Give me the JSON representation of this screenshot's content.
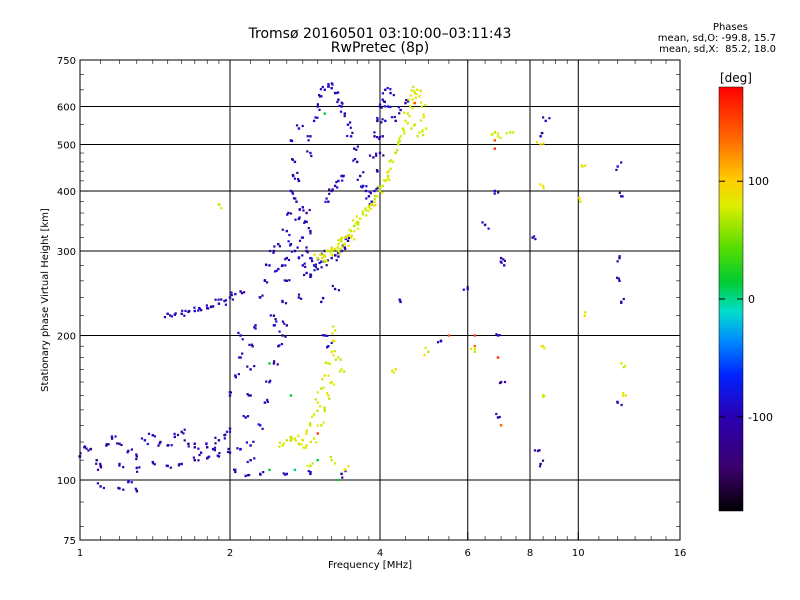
{
  "header": {
    "title": "Tromsø 20160501 03:10:00–03:11:43",
    "subtitle": "RwPretec (8p)",
    "stats_head": "Phases",
    "stats_line1": "mean, sd,O: -99.8, 15.7",
    "stats_line2": "mean, sd,X:  85.2, 18.0"
  },
  "chart_data": {
    "type": "scatter",
    "xlabel": "Frequency [MHz]",
    "ylabel": "Stationary phase Virtual Height [km]",
    "x_scale": "log",
    "y_scale": "log",
    "xlim": [
      1,
      16
    ],
    "ylim": [
      75,
      750
    ],
    "x_ticks": [
      "1",
      "2",
      "4",
      "6",
      "8",
      "10",
      "16"
    ],
    "x_tick_values": [
      1,
      2,
      4,
      6,
      8,
      10,
      16
    ],
    "y_ticks": [
      "75",
      "100",
      "200",
      "300",
      "400",
      "500",
      "600",
      "750"
    ],
    "y_tick_values": [
      75,
      100,
      200,
      300,
      400,
      500,
      600,
      750
    ],
    "grid": true,
    "colorbar": {
      "label": "[deg]",
      "range": [
        -180,
        180
      ],
      "ticks": [
        "100",
        "0",
        "-100"
      ],
      "tick_values": [
        100,
        0,
        -100
      ]
    },
    "series": [
      {
        "mode": "O",
        "phase": -100,
        "points": [
          [
            1.0,
            112
          ],
          [
            1.02,
            117
          ],
          [
            1.05,
            116
          ],
          [
            1.08,
            110
          ],
          [
            1.1,
            107
          ],
          [
            1.13,
            118
          ],
          [
            1.16,
            122
          ],
          [
            1.2,
            119
          ],
          [
            1.25,
            115
          ],
          [
            1.3,
            112
          ],
          [
            1.35,
            121
          ],
          [
            1.4,
            124
          ],
          [
            1.45,
            120
          ],
          [
            1.5,
            118
          ],
          [
            1.55,
            123
          ],
          [
            1.6,
            126
          ],
          [
            1.65,
            119
          ],
          [
            1.7,
            117
          ],
          [
            1.75,
            114
          ],
          [
            1.8,
            117
          ],
          [
            1.85,
            116
          ],
          [
            1.9,
            121
          ],
          [
            1.95,
            124
          ],
          [
            2.0,
            128
          ],
          [
            1.2,
            108
          ],
          [
            1.3,
            106
          ],
          [
            1.4,
            109
          ],
          [
            1.5,
            107
          ],
          [
            1.6,
            108
          ],
          [
            1.7,
            110
          ],
          [
            1.8,
            111
          ],
          [
            1.9,
            112
          ],
          [
            2.0,
            114
          ],
          [
            2.1,
            116
          ],
          [
            2.2,
            118
          ],
          [
            2.05,
            104
          ],
          [
            2.15,
            102
          ],
          [
            2.2,
            110
          ],
          [
            1.5,
            222
          ],
          [
            1.55,
            221
          ],
          [
            1.6,
            222
          ],
          [
            1.65,
            224
          ],
          [
            1.7,
            225
          ],
          [
            1.75,
            226
          ],
          [
            1.8,
            228
          ],
          [
            1.85,
            230
          ],
          [
            1.9,
            233
          ],
          [
            1.95,
            236
          ],
          [
            2.0,
            240
          ],
          [
            2.05,
            244
          ],
          [
            2.1,
            247
          ],
          [
            2.2,
            150
          ],
          [
            2.2,
            170
          ],
          [
            2.22,
            190
          ],
          [
            2.25,
            210
          ],
          [
            2.3,
            240
          ],
          [
            2.35,
            260
          ],
          [
            2.4,
            280
          ],
          [
            2.45,
            300
          ],
          [
            2.5,
            310
          ],
          [
            2.3,
            130
          ],
          [
            2.35,
            145
          ],
          [
            2.4,
            160
          ],
          [
            2.45,
            175
          ],
          [
            2.5,
            190
          ],
          [
            2.55,
            200
          ],
          [
            2.6,
            210
          ],
          [
            2.0,
            150
          ],
          [
            2.05,
            165
          ],
          [
            2.1,
            180
          ],
          [
            2.1,
            200
          ],
          [
            2.15,
            135
          ],
          [
            2.6,
            330
          ],
          [
            2.62,
            360
          ],
          [
            2.65,
            400
          ],
          [
            2.68,
            430
          ],
          [
            2.7,
            460
          ],
          [
            2.72,
            380
          ],
          [
            2.75,
            350
          ],
          [
            2.8,
            320
          ],
          [
            2.85,
            300
          ],
          [
            2.9,
            290
          ],
          [
            2.95,
            280
          ],
          [
            3.0,
            275
          ],
          [
            3.05,
            285
          ],
          [
            3.1,
            300
          ],
          [
            2.8,
            370
          ],
          [
            2.85,
            345
          ],
          [
            2.9,
            330
          ],
          [
            2.75,
            420
          ],
          [
            2.65,
            310
          ],
          [
            2.7,
            300
          ],
          [
            2.75,
            290
          ],
          [
            2.8,
            280
          ],
          [
            2.85,
            270
          ],
          [
            2.9,
            265
          ],
          [
            2.6,
            290
          ],
          [
            2.55,
            280
          ],
          [
            2.5,
            275
          ],
          [
            2.6,
            260
          ],
          [
            3.1,
            285
          ],
          [
            3.2,
            290
          ],
          [
            3.3,
            292
          ],
          [
            3.35,
            300
          ],
          [
            3.4,
            305
          ],
          [
            3.45,
            315
          ],
          [
            2.9,
            520
          ],
          [
            2.95,
            560
          ],
          [
            3.0,
            600
          ],
          [
            3.05,
            630
          ],
          [
            3.1,
            650
          ],
          [
            3.15,
            660
          ],
          [
            3.2,
            655
          ],
          [
            3.25,
            640
          ],
          [
            3.3,
            620
          ],
          [
            3.35,
            600
          ],
          [
            3.4,
            580
          ],
          [
            3.45,
            550
          ],
          [
            3.5,
            520
          ],
          [
            3.55,
            490
          ],
          [
            3.6,
            460
          ],
          [
            3.65,
            430
          ],
          [
            3.7,
            410
          ],
          [
            3.75,
            400
          ],
          [
            3.8,
            390
          ],
          [
            3.85,
            380
          ],
          [
            3.9,
            400
          ],
          [
            3.95,
            440
          ],
          [
            4.0,
            480
          ],
          [
            4.05,
            520
          ],
          [
            4.1,
            560
          ],
          [
            4.15,
            600
          ],
          [
            4.2,
            640
          ],
          [
            4.0,
            600
          ],
          [
            4.05,
            620
          ],
          [
            4.1,
            650
          ],
          [
            3.95,
            560
          ],
          [
            3.9,
            520
          ],
          [
            3.88,
            470
          ],
          [
            3.15,
            380
          ],
          [
            3.2,
            400
          ],
          [
            3.25,
            410
          ],
          [
            3.3,
            420
          ],
          [
            3.35,
            430
          ],
          [
            2.85,
            360
          ],
          [
            2.75,
            240
          ],
          [
            2.55,
            235
          ],
          [
            2.45,
            220
          ],
          [
            2.45,
            210
          ],
          [
            3.1,
            200
          ],
          [
            3.15,
            190
          ],
          [
            3.05,
            235
          ],
          [
            3.25,
            250
          ],
          [
            2.65,
            510
          ],
          [
            2.75,
            540
          ],
          [
            2.9,
            480
          ],
          [
            4.5,
            610
          ],
          [
            4.4,
            590
          ],
          [
            4.3,
            560
          ],
          [
            4.4,
            235
          ],
          [
            8.4,
            520
          ],
          [
            8.6,
            560
          ],
          [
            6.5,
            340
          ],
          [
            6.8,
            400
          ],
          [
            7.0,
            290
          ],
          [
            7.1,
            280
          ],
          [
            6.0,
            250
          ],
          [
            6.9,
            200
          ],
          [
            6.9,
            135
          ],
          [
            8.1,
            320
          ],
          [
            8.3,
            115
          ],
          [
            8.4,
            108
          ],
          [
            12.0,
            450
          ],
          [
            12.2,
            390
          ],
          [
            12.1,
            290
          ],
          [
            12.1,
            260
          ],
          [
            12.2,
            235
          ],
          [
            12.0,
            145
          ],
          [
            7.0,
            160
          ],
          [
            5.3,
            195
          ],
          [
            1.1,
            97
          ],
          [
            1.2,
            96
          ],
          [
            1.3,
            95
          ],
          [
            1.25,
            99
          ],
          [
            2.6,
            103
          ],
          [
            2.9,
            103
          ],
          [
            3.35,
            103
          ],
          [
            2.3,
            103
          ]
        ]
      },
      {
        "mode": "X",
        "phase": 80,
        "points": [
          [
            2.55,
            118
          ],
          [
            2.6,
            121
          ],
          [
            2.65,
            123
          ],
          [
            2.7,
            122
          ],
          [
            2.75,
            119
          ],
          [
            2.8,
            121
          ],
          [
            2.85,
            125
          ],
          [
            2.9,
            130
          ],
          [
            2.95,
            137
          ],
          [
            3.0,
            145
          ],
          [
            3.05,
            155
          ],
          [
            3.1,
            165
          ],
          [
            3.15,
            175
          ],
          [
            3.2,
            185
          ],
          [
            3.22,
            195
          ],
          [
            3.25,
            205
          ],
          [
            3.3,
            180
          ],
          [
            3.35,
            170
          ],
          [
            2.85,
            118
          ],
          [
            2.95,
            122
          ],
          [
            3.05,
            130
          ],
          [
            3.1,
            140
          ],
          [
            3.15,
            150
          ],
          [
            3.2,
            160
          ],
          [
            3.0,
            290
          ],
          [
            3.05,
            295
          ],
          [
            3.1,
            292
          ],
          [
            3.15,
            300
          ],
          [
            3.2,
            305
          ],
          [
            3.25,
            303
          ],
          [
            3.3,
            310
          ],
          [
            3.35,
            315
          ],
          [
            3.4,
            320
          ],
          [
            3.45,
            323
          ],
          [
            3.5,
            330
          ],
          [
            3.55,
            338
          ],
          [
            3.6,
            345
          ],
          [
            3.65,
            350
          ],
          [
            3.7,
            358
          ],
          [
            3.75,
            365
          ],
          [
            3.8,
            370
          ],
          [
            3.85,
            375
          ],
          [
            3.9,
            380
          ],
          [
            3.95,
            390
          ],
          [
            4.0,
            400
          ],
          [
            4.05,
            410
          ],
          [
            4.1,
            420
          ],
          [
            4.15,
            430
          ],
          [
            4.2,
            445
          ],
          [
            4.25,
            460
          ],
          [
            4.3,
            480
          ],
          [
            4.35,
            500
          ],
          [
            4.4,
            520
          ],
          [
            4.45,
            540
          ],
          [
            4.5,
            560
          ],
          [
            4.55,
            580
          ],
          [
            4.6,
            600
          ],
          [
            4.65,
            620
          ],
          [
            4.7,
            640
          ],
          [
            4.75,
            650
          ],
          [
            4.8,
            630
          ],
          [
            4.85,
            600
          ],
          [
            4.9,
            570
          ],
          [
            4.95,
            540
          ],
          [
            4.8,
            530
          ],
          [
            4.7,
            550
          ],
          [
            3.1,
            285
          ],
          [
            3.2,
            295
          ],
          [
            3.3,
            300
          ],
          [
            3.4,
            310
          ],
          [
            3.5,
            320
          ],
          [
            6.8,
            530
          ],
          [
            6.9,
            520
          ],
          [
            7.3,
            530
          ],
          [
            8.4,
            500
          ],
          [
            8.5,
            410
          ],
          [
            8.5,
            190
          ],
          [
            8.5,
            150
          ],
          [
            10.2,
            450
          ],
          [
            10.3,
            220
          ],
          [
            10.1,
            380
          ],
          [
            12.2,
            175
          ],
          [
            12.3,
            150
          ],
          [
            6.2,
            185
          ],
          [
            5.0,
            185
          ],
          [
            4.3,
            170
          ],
          [
            3.4,
            105
          ],
          [
            3.2,
            110
          ],
          [
            2.9,
            107
          ],
          [
            1.9,
            375
          ]
        ]
      },
      {
        "mode": "X-high",
        "phase": 150,
        "points": [
          [
            6.8,
            510
          ],
          [
            6.8,
            490
          ],
          [
            6.2,
            200
          ],
          [
            6.2,
            190
          ],
          [
            7.0,
            130
          ],
          [
            4.7,
            610
          ],
          [
            3.0,
            125
          ],
          [
            6.9,
            180
          ],
          [
            5.5,
            200
          ]
        ]
      },
      {
        "mode": "mixed",
        "phase": 10,
        "points": [
          [
            2.7,
            105
          ],
          [
            2.4,
            105
          ],
          [
            3.0,
            110
          ],
          [
            2.65,
            150
          ],
          [
            3.1,
            580
          ],
          [
            3.3,
            100
          ],
          [
            2.4,
            175
          ]
        ]
      }
    ]
  }
}
